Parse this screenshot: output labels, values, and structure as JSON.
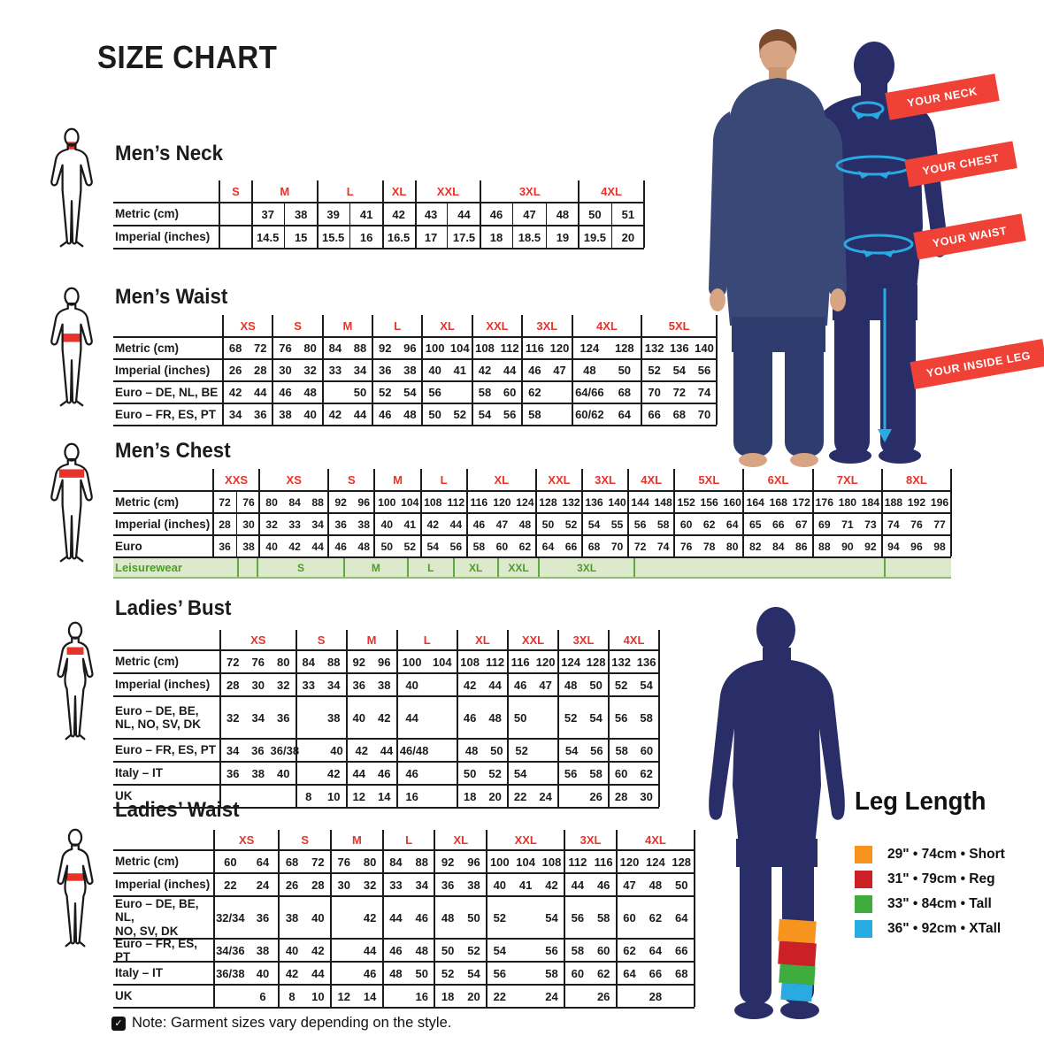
{
  "title": "SIZE CHART",
  "note": {
    "text": "Note: Garment sizes vary depending on the style."
  },
  "measure_banners": [
    {
      "label": "YOUR NECK"
    },
    {
      "label": "YOUR CHEST"
    },
    {
      "label": "YOUR WAIST"
    },
    {
      "label": "YOUR INSIDE LEG"
    }
  ],
  "leg_length": {
    "title": "Leg Length",
    "items": [
      {
        "color": "#F7941E",
        "label": "29\" • 74cm • Short"
      },
      {
        "color": "#CC2027",
        "label": "31\" • 79cm • Reg"
      },
      {
        "color": "#3EAD3E",
        "label": "33\" • 84cm • Tall"
      },
      {
        "color": "#29ABE2",
        "label": "36\" • 92cm • XTall"
      }
    ]
  },
  "tables": [
    {
      "id": "mens-neck",
      "heading": "Men’s Neck",
      "groups": [
        {
          "label": "S",
          "cols": 1
        },
        {
          "label": "M",
          "cols": 2
        },
        {
          "label": "L",
          "cols": 2
        },
        {
          "label": "XL",
          "cols": 1
        },
        {
          "label": "XXL",
          "cols": 2
        },
        {
          "label": "3XL",
          "cols": 3
        },
        {
          "label": "4XL",
          "cols": 2
        }
      ],
      "rows": [
        {
          "label": "Metric (cm)",
          "cells": [
            "",
            "37",
            "38",
            "39",
            "41",
            "42",
            "43",
            "44",
            "46",
            "47",
            "48",
            "50",
            "51"
          ]
        },
        {
          "label": "Imperial (inches)",
          "cells": [
            "",
            "14.5",
            "15",
            "15.5",
            "16",
            "16.5",
            "17",
            "17.5",
            "18",
            "18.5",
            "19",
            "19.5",
            "20"
          ]
        }
      ]
    },
    {
      "id": "mens-waist",
      "heading": "Men’s Waist",
      "groups": [
        {
          "label": "XS",
          "cols": 2
        },
        {
          "label": "S",
          "cols": 2
        },
        {
          "label": "M",
          "cols": 2
        },
        {
          "label": "L",
          "cols": 2
        },
        {
          "label": "XL",
          "cols": 2
        },
        {
          "label": "XXL",
          "cols": 2
        },
        {
          "label": "3XL",
          "cols": 2
        },
        {
          "label": "4XL",
          "cols": 2
        },
        {
          "label": "5XL",
          "cols": 3
        }
      ],
      "rows": [
        {
          "label": "Metric (cm)",
          "cells": [
            "68",
            "72",
            "76",
            "80",
            "84",
            "88",
            "92",
            "96",
            "100",
            "104",
            "108",
            "112",
            "116",
            "120",
            "124",
            "128",
            "132",
            "136",
            "140"
          ]
        },
        {
          "label": "Imperial (inches)",
          "cells": [
            "26",
            "28",
            "30",
            "32",
            "33",
            "34",
            "36",
            "38",
            "40",
            "41",
            "42",
            "44",
            "46",
            "47",
            "48",
            "50",
            "52",
            "54",
            "56"
          ]
        },
        {
          "label": "Euro – DE, NL, BE",
          "cells": [
            "42",
            "44",
            "46",
            "48",
            "",
            "50",
            "52",
            "54",
            "56",
            "",
            "58",
            "60",
            "62",
            "",
            "64/66",
            "68",
            "70",
            "72",
            "74"
          ]
        },
        {
          "label": "Euro – FR, ES, PT",
          "cells": [
            "34",
            "36",
            "38",
            "40",
            "42",
            "44",
            "46",
            "48",
            "50",
            "52",
            "54",
            "56",
            "58",
            "",
            "60/62",
            "64",
            "66",
            "68",
            "70"
          ]
        }
      ]
    },
    {
      "id": "mens-chest",
      "heading": "Men’s Chest",
      "groups": [
        {
          "label": "XXS",
          "cols": 2
        },
        {
          "label": "XS",
          "cols": 3
        },
        {
          "label": "S",
          "cols": 2
        },
        {
          "label": "M",
          "cols": 2
        },
        {
          "label": "L",
          "cols": 2
        },
        {
          "label": "XL",
          "cols": 3
        },
        {
          "label": "XXL",
          "cols": 2
        },
        {
          "label": "3XL",
          "cols": 2
        },
        {
          "label": "4XL",
          "cols": 2
        },
        {
          "label": "5XL",
          "cols": 3
        },
        {
          "label": "6XL",
          "cols": 3
        },
        {
          "label": "7XL",
          "cols": 3
        },
        {
          "label": "8XL",
          "cols": 3
        }
      ],
      "rows": [
        {
          "label": "Metric (cm)",
          "cells": [
            "72",
            "76",
            "80",
            "84",
            "88",
            "92",
            "96",
            "100",
            "104",
            "108",
            "112",
            "116",
            "120",
            "124",
            "128",
            "132",
            "136",
            "140",
            "144",
            "148",
            "152",
            "156",
            "160",
            "164",
            "168",
            "172",
            "176",
            "180",
            "184",
            "188",
            "192",
            "196"
          ]
        },
        {
          "label": "Imperial (inches)",
          "cells": [
            "28",
            "30",
            "32",
            "33",
            "34",
            "36",
            "38",
            "40",
            "41",
            "42",
            "44",
            "46",
            "47",
            "48",
            "50",
            "52",
            "54",
            "55",
            "56",
            "58",
            "60",
            "62",
            "64",
            "65",
            "66",
            "67",
            "69",
            "71",
            "73",
            "74",
            "76",
            "77"
          ]
        },
        {
          "label": "Euro",
          "cells": [
            "36",
            "38",
            "40",
            "42",
            "44",
            "46",
            "48",
            "50",
            "52",
            "54",
            "56",
            "58",
            "60",
            "62",
            "64",
            "66",
            "68",
            "70",
            "72",
            "74",
            "76",
            "78",
            "80",
            "82",
            "84",
            "86",
            "88",
            "90",
            "92",
            "94",
            "96",
            "98"
          ]
        }
      ],
      "leisure": {
        "label": "Leisurewear",
        "cells": [
          "",
          "",
          "S",
          "M",
          "L",
          "XL",
          "XXL",
          "3XL",
          "",
          ""
        ]
      }
    },
    {
      "id": "ladies-bust",
      "heading": "Ladies’ Bust",
      "groups": [
        {
          "label": "XS",
          "cols": 3
        },
        {
          "label": "S",
          "cols": 2
        },
        {
          "label": "M",
          "cols": 2
        },
        {
          "label": "L",
          "cols": 2
        },
        {
          "label": "XL",
          "cols": 2
        },
        {
          "label": "XXL",
          "cols": 2
        },
        {
          "label": "3XL",
          "cols": 2
        },
        {
          "label": "4XL",
          "cols": 2
        }
      ],
      "rows": [
        {
          "label": "Metric (cm)",
          "cells": [
            "72",
            "76",
            "80",
            "84",
            "88",
            "92",
            "96",
            "100",
            "104",
            "108",
            "112",
            "116",
            "120",
            "124",
            "128",
            "132",
            "136"
          ]
        },
        {
          "label": "Imperial (inches)",
          "cells": [
            "28",
            "30",
            "32",
            "33",
            "34",
            "36",
            "38",
            "40",
            "",
            "42",
            "44",
            "46",
            "47",
            "48",
            "50",
            "52",
            "54"
          ]
        },
        {
          "label": "Euro –  DE, BE,\nNL, NO, SV, DK",
          "cells": [
            "32",
            "34",
            "36",
            "",
            "38",
            "40",
            "42",
            "44",
            "",
            "46",
            "48",
            "50",
            "",
            "52",
            "54",
            "56",
            "58"
          ]
        },
        {
          "label": "Euro – FR, ES, PT",
          "cells": [
            "34",
            "36",
            "36/38",
            "",
            "40",
            "42",
            "44",
            "46/48",
            "",
            "48",
            "50",
            "52",
            "",
            "54",
            "56",
            "58",
            "60"
          ]
        },
        {
          "label": "Italy – IT",
          "cells": [
            "36",
            "38",
            "40",
            "",
            "42",
            "44",
            "46",
            "46",
            "",
            "50",
            "52",
            "54",
            "",
            "56",
            "58",
            "60",
            "62"
          ]
        },
        {
          "label": "UK",
          "cells": [
            "",
            "",
            "",
            "8",
            "10",
            "12",
            "14",
            "16",
            "",
            "18",
            "20",
            "22",
            "24",
            "",
            "26",
            "28",
            "30"
          ]
        }
      ]
    },
    {
      "id": "ladies-waist",
      "heading": "Ladies’ Waist",
      "groups": [
        {
          "label": "XS",
          "cols": 2
        },
        {
          "label": "S",
          "cols": 2
        },
        {
          "label": "M",
          "cols": 2
        },
        {
          "label": "L",
          "cols": 2
        },
        {
          "label": "XL",
          "cols": 2
        },
        {
          "label": "XXL",
          "cols": 3
        },
        {
          "label": "3XL",
          "cols": 2
        },
        {
          "label": "4XL",
          "cols": 3
        }
      ],
      "rows": [
        {
          "label": "Metric (cm)",
          "cells": [
            "60",
            "64",
            "68",
            "72",
            "76",
            "80",
            "84",
            "88",
            "92",
            "96",
            "100",
            "104",
            "108",
            "112",
            "116",
            "120",
            "124",
            "128"
          ]
        },
        {
          "label": "Imperial (inches)",
          "cells": [
            "22",
            "24",
            "26",
            "28",
            "30",
            "32",
            "33",
            "34",
            "36",
            "38",
            "40",
            "41",
            "42",
            "44",
            "46",
            "47",
            "48",
            "50"
          ]
        },
        {
          "label": "Euro – DE, BE, NL,\nNO, SV, DK",
          "cells": [
            "32/34",
            "36",
            "38",
            "40",
            "",
            "42",
            "44",
            "46",
            "48",
            "50",
            "52",
            "",
            "54",
            "56",
            "58",
            "60",
            "62",
            "64"
          ]
        },
        {
          "label": "Euro – FR, ES, PT",
          "cells": [
            "34/36",
            "38",
            "40",
            "42",
            "",
            "44",
            "46",
            "48",
            "50",
            "52",
            "54",
            "",
            "56",
            "58",
            "60",
            "62",
            "64",
            "66"
          ]
        },
        {
          "label": "Italy – IT",
          "cells": [
            "36/38",
            "40",
            "42",
            "44",
            "",
            "46",
            "48",
            "50",
            "52",
            "54",
            "56",
            "",
            "58",
            "60",
            "62",
            "64",
            "66",
            "68"
          ]
        },
        {
          "label": "UK",
          "cells": [
            "",
            "6",
            "8",
            "10",
            "12",
            "14",
            "",
            "16",
            "18",
            "20",
            "22",
            "",
            "24",
            "",
            "26",
            "",
            "28",
            ""
          ]
        }
      ]
    }
  ]
}
